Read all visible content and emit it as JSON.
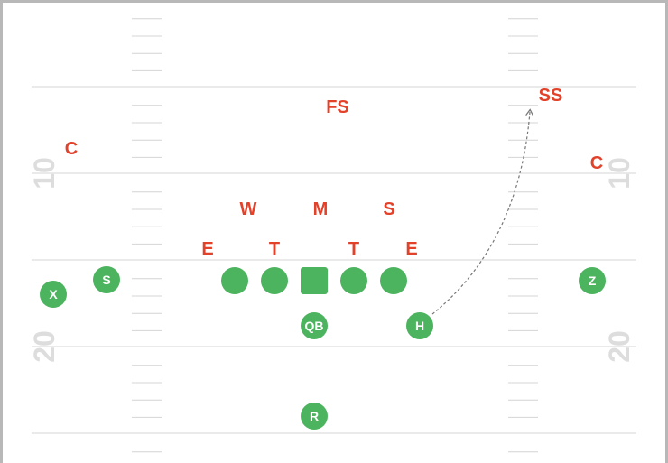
{
  "colors": {
    "offense": "#4cb35f",
    "defense": "#e2412a",
    "yard_line": "#d6d6d6",
    "hash": "#d4d4d4",
    "yard_number": "#dddddd",
    "border": "#b8b8b8",
    "route": "#777777"
  },
  "yard_numbers": {
    "ten": "10",
    "twenty": "20"
  },
  "offense": {
    "x": "X",
    "s": "S",
    "qb": "QB",
    "h": "H",
    "z": "Z",
    "r": "R"
  },
  "defense": {
    "fs": "FS",
    "ss": "SS",
    "c_left": "C",
    "c_right": "C",
    "w": "W",
    "m": "M",
    "s": "S",
    "e_left": "E",
    "t_left": "T",
    "t_right": "T",
    "e_right": "E"
  }
}
